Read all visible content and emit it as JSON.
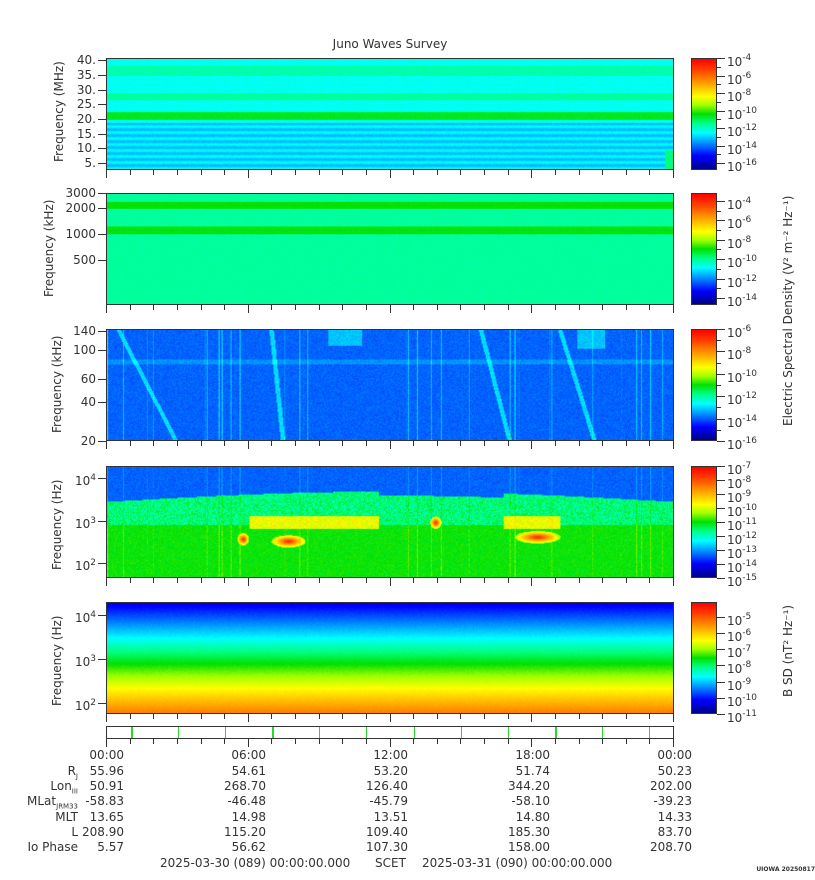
{
  "chart_data": {
    "type": "heatmap",
    "title": "Juno Waves Survey",
    "panels": [
      {
        "ylabel": "Frequency (MHz)",
        "yscale": "linear",
        "ylim": [
          2.6,
          40.8
        ],
        "yticks": [
          {
            "v": 5,
            "t": "5."
          },
          {
            "v": 10,
            "t": "10."
          },
          {
            "v": 15,
            "t": "15."
          },
          {
            "v": 20,
            "t": "20."
          },
          {
            "v": 25,
            "t": "25."
          },
          {
            "v": 30,
            "t": "30."
          },
          {
            "v": 35,
            "t": "35."
          },
          {
            "v": 40,
            "t": "40."
          }
        ],
        "colorbar": {
          "exp_range": [
            -16.8,
            -4
          ],
          "ticks": [
            -4,
            -6,
            -8,
            -10,
            -12,
            -14,
            -16
          ]
        }
      },
      {
        "ylabel": "Frequency (kHz)",
        "yscale": "log",
        "ylim": [
          150,
          3000
        ],
        "yticks": [
          {
            "v": 500,
            "t": "500"
          },
          {
            "v": 1000,
            "t": "1000"
          },
          {
            "v": 2000,
            "t": "2000"
          },
          {
            "v": 3000,
            "t": "3000"
          }
        ],
        "colorbar": {
          "exp_range": [
            -14.7,
            -3.2
          ],
          "ticks": [
            -4,
            -6,
            -8,
            -10,
            -12,
            -14
          ]
        }
      },
      {
        "ylabel": "Frequency (kHz)",
        "yscale": "log",
        "ylim": [
          20,
          145
        ],
        "yticks": [
          {
            "v": 20,
            "t": "20"
          },
          {
            "v": 40,
            "t": "40"
          },
          {
            "v": 60,
            "t": "60"
          },
          {
            "v": 100,
            "t": "100"
          },
          {
            "v": 140,
            "t": "140"
          }
        ],
        "colorbar": {
          "exp_range": [
            -16,
            -6
          ],
          "ticks": [
            -6,
            -8,
            -10,
            -12,
            -14,
            -16
          ]
        }
      },
      {
        "ylabel": "Frequency (Hz)",
        "yscale": "log",
        "ylim": [
          45,
          19000
        ],
        "yticks": [
          {
            "v": 100,
            "t": "10",
            "e": "2"
          },
          {
            "v": 1000,
            "t": "10",
            "e": "3"
          },
          {
            "v": 10000,
            "t": "10",
            "e": "4"
          }
        ],
        "colorbar": {
          "exp_range": [
            -15,
            -7
          ],
          "ticks": [
            -7,
            -8,
            -9,
            -10,
            -11,
            -12,
            -13,
            -14,
            -15
          ]
        }
      },
      {
        "ylabel": "Frequency (Hz)",
        "yscale": "log",
        "ylim": [
          56,
          20000
        ],
        "yticks": [
          {
            "v": 100,
            "t": "10",
            "e": "2"
          },
          {
            "v": 1000,
            "t": "10",
            "e": "3"
          },
          {
            "v": 10000,
            "t": "10",
            "e": "4"
          }
        ],
        "colorbar": {
          "exp_range": [
            -11,
            -4.1
          ],
          "ticks": [
            -5,
            -6,
            -7,
            -8,
            -9,
            -10,
            -11
          ]
        }
      }
    ],
    "colorbar_labels": {
      "electric": "Electric Spectral Density (V² m⁻² Hz⁻¹)",
      "magnetic": "B SD (nT² Hz⁻¹)"
    },
    "x": {
      "range_hours": [
        0,
        24
      ],
      "tick_labels": [
        "00:00",
        "06:00",
        "12:00",
        "18:00",
        "00:00"
      ]
    },
    "ephemeris": [
      {
        "label": "R",
        "sub": "J",
        "values": [
          "55.96",
          "54.61",
          "53.20",
          "51.74",
          "50.23"
        ]
      },
      {
        "label": "Lon",
        "sub": "III",
        "values": [
          "50.91",
          "268.70",
          "126.40",
          "344.20",
          "202.00"
        ]
      },
      {
        "label": "MLat",
        "sub": "JRM33",
        "values": [
          "-58.83",
          "-46.48",
          "-45.79",
          "-58.10",
          "-39.23"
        ]
      },
      {
        "label": "MLT",
        "sub": "",
        "values": [
          "13.65",
          "14.98",
          "13.51",
          "14.80",
          "14.33"
        ]
      },
      {
        "label": "L",
        "sub": "",
        "values": [
          "208.90",
          "115.20",
          "109.40",
          "185.30",
          "83.70"
        ]
      },
      {
        "label": "Io Phase",
        "sub": "",
        "values": [
          "5.57",
          "56.62",
          "107.30",
          "158.00",
          "208.70"
        ]
      }
    ],
    "footer": {
      "start": "2025-03-30 (089) 00:00:00.000",
      "scet": "SCET",
      "end": "2025-03-31 (090) 00:00:00.000"
    },
    "stamp": "UIOWA 20250817"
  }
}
